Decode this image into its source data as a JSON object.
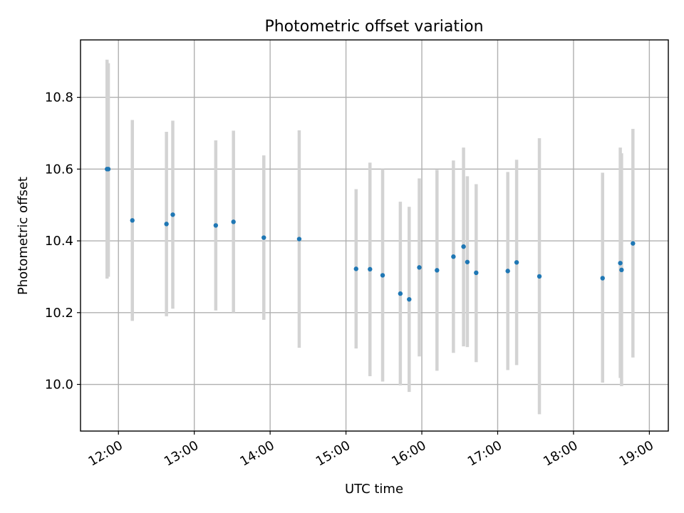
{
  "chart_data": {
    "type": "scatter",
    "title": "Photometric offset variation",
    "xlabel": "UTC time",
    "ylabel": "Photometric offset",
    "x_unit": "hour",
    "xlim": [
      "11:30",
      "19:15"
    ],
    "ylim": [
      9.87,
      10.96
    ],
    "xticks": [
      "12:00",
      "13:00",
      "14:00",
      "15:00",
      "16:00",
      "17:00",
      "18:00",
      "19:00"
    ],
    "yticks": [
      10.0,
      10.2,
      10.4,
      10.6,
      10.8
    ],
    "ytick_labels": [
      "10.0",
      "10.2",
      "10.4",
      "10.6",
      "10.8"
    ],
    "grid": true,
    "point_color": "#1f77b4",
    "errorbar_color": "#d3d3d3",
    "points": [
      {
        "x": "11:51",
        "y": 10.6,
        "ylow": 10.295,
        "yhigh": 10.905
      },
      {
        "x": "11:52",
        "y": 10.6,
        "ylow": 10.3,
        "yhigh": 10.895
      },
      {
        "x": "12:11",
        "y": 10.457,
        "ylow": 10.177,
        "yhigh": 10.737
      },
      {
        "x": "12:38",
        "y": 10.447,
        "ylow": 10.19,
        "yhigh": 10.704
      },
      {
        "x": "12:43",
        "y": 10.473,
        "ylow": 10.211,
        "yhigh": 10.735
      },
      {
        "x": "13:17",
        "y": 10.443,
        "ylow": 10.206,
        "yhigh": 10.68
      },
      {
        "x": "13:31",
        "y": 10.453,
        "ylow": 10.2,
        "yhigh": 10.707
      },
      {
        "x": "13:55",
        "y": 10.409,
        "ylow": 10.18,
        "yhigh": 10.638
      },
      {
        "x": "14:23",
        "y": 10.405,
        "ylow": 10.102,
        "yhigh": 10.708
      },
      {
        "x": "15:08",
        "y": 10.322,
        "ylow": 10.1,
        "yhigh": 10.544
      },
      {
        "x": "15:19",
        "y": 10.321,
        "ylow": 10.023,
        "yhigh": 10.618
      },
      {
        "x": "15:29",
        "y": 10.304,
        "ylow": 10.008,
        "yhigh": 10.6
      },
      {
        "x": "15:43",
        "y": 10.253,
        "ylow": 9.997,
        "yhigh": 10.509
      },
      {
        "x": "15:50",
        "y": 10.237,
        "ylow": 9.979,
        "yhigh": 10.495
      },
      {
        "x": "15:58",
        "y": 10.326,
        "ylow": 10.078,
        "yhigh": 10.574
      },
      {
        "x": "16:12",
        "y": 10.318,
        "ylow": 10.038,
        "yhigh": 10.598
      },
      {
        "x": "16:25",
        "y": 10.356,
        "ylow": 10.088,
        "yhigh": 10.624
      },
      {
        "x": "16:33",
        "y": 10.384,
        "ylow": 10.106,
        "yhigh": 10.66
      },
      {
        "x": "16:36",
        "y": 10.341,
        "ylow": 10.104,
        "yhigh": 10.58
      },
      {
        "x": "16:43",
        "y": 10.311,
        "ylow": 10.062,
        "yhigh": 10.558
      },
      {
        "x": "17:08",
        "y": 10.316,
        "ylow": 10.04,
        "yhigh": 10.592
      },
      {
        "x": "17:15",
        "y": 10.34,
        "ylow": 10.054,
        "yhigh": 10.626
      },
      {
        "x": "17:33",
        "y": 10.301,
        "ylow": 9.917,
        "yhigh": 10.686
      },
      {
        "x": "18:23",
        "y": 10.296,
        "ylow": 10.005,
        "yhigh": 10.59
      },
      {
        "x": "18:37",
        "y": 10.338,
        "ylow": 10.018,
        "yhigh": 10.66
      },
      {
        "x": "18:38",
        "y": 10.319,
        "ylow": 9.995,
        "yhigh": 10.644
      },
      {
        "x": "18:47",
        "y": 10.393,
        "ylow": 10.075,
        "yhigh": 10.712
      }
    ]
  }
}
